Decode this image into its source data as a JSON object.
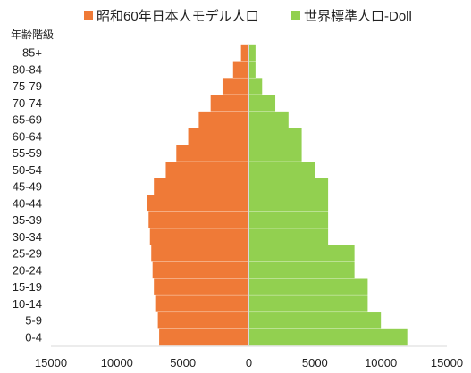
{
  "chart_data": {
    "type": "bar",
    "orientation": "horizontal",
    "layout": "population-pyramid",
    "ylabel": "年齢階級",
    "categories": [
      "0-4",
      "5-9",
      "10-14",
      "15-19",
      "20-24",
      "25-29",
      "30-34",
      "35-39",
      "40-44",
      "45-49",
      "50-54",
      "55-59",
      "60-64",
      "65-69",
      "70-74",
      "75-79",
      "80-84",
      "85+"
    ],
    "series": [
      {
        "name": "昭和60年日本人モデル人口",
        "side": "left",
        "color": "#ef7a37",
        "values": [
          6800,
          6900,
          7100,
          7200,
          7300,
          7400,
          7500,
          7600,
          7700,
          7200,
          6300,
          5500,
          4600,
          3800,
          2900,
          2000,
          1200,
          600
        ]
      },
      {
        "name": "世界標準人口-Doll",
        "side": "right",
        "color": "#92d050",
        "values": [
          12000,
          10000,
          9000,
          9000,
          8000,
          8000,
          6000,
          6000,
          6000,
          6000,
          5000,
          4000,
          4000,
          3000,
          2000,
          1000,
          500,
          500
        ]
      }
    ],
    "xlim": [
      -15000,
      15000
    ],
    "xticks": [
      {
        "value": -15000,
        "label": "15000",
        "color": "#e8302f"
      },
      {
        "value": -10000,
        "label": "10000",
        "color": "#e8302f"
      },
      {
        "value": -5000,
        "label": "5000",
        "color": "#222222"
      },
      {
        "value": 0,
        "label": "0",
        "color": "#222222"
      },
      {
        "value": 5000,
        "label": "5000",
        "color": "#222222"
      },
      {
        "value": 10000,
        "label": "10000",
        "color": "#222222"
      },
      {
        "value": 15000,
        "label": "15000",
        "color": "#222222"
      }
    ],
    "grid": false,
    "legend_position": "top"
  }
}
